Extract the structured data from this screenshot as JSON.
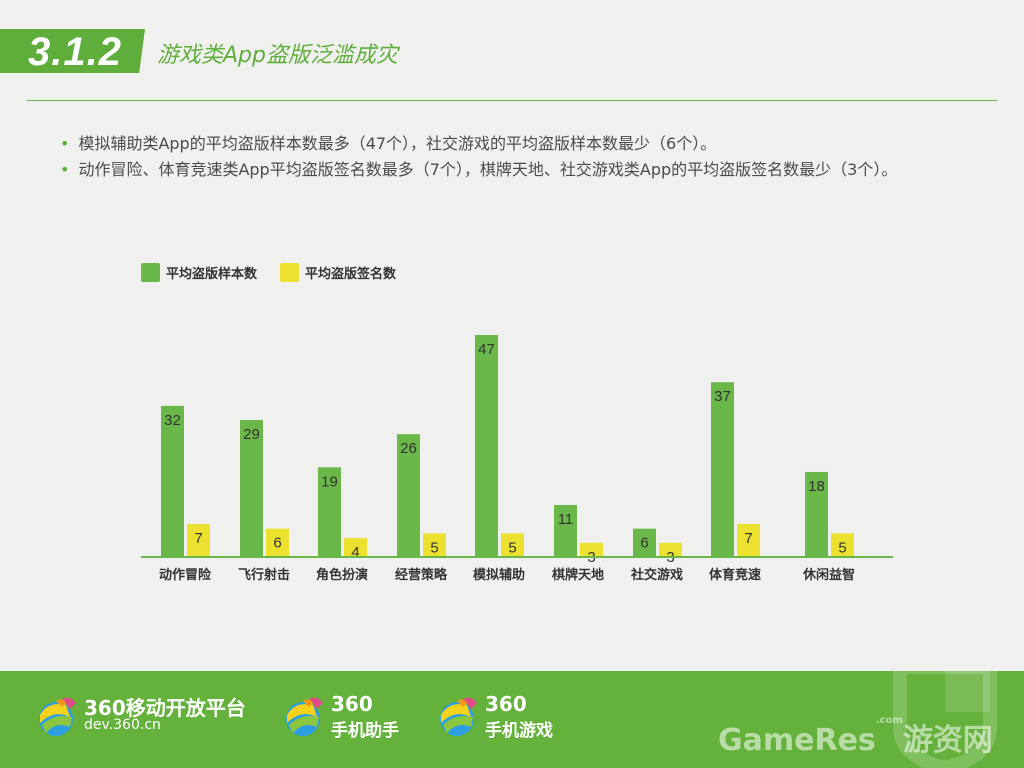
{
  "header": {
    "section_number": "3.1.2",
    "title": "游戏类App盗版泛滥成灾"
  },
  "bullets": [
    "模拟辅助类App的平均盗版样本数最多（47个），社交游戏的平均盗版样本数最少（6个）。",
    "动作冒险、体育竞速类App平均盗版签名数最多（7个），棋牌天地、社交游戏类App的平均盗版签名数最少（3个）。"
  ],
  "chart_data": {
    "type": "bar",
    "categories": [
      "动作冒险",
      "飞行射击",
      "角色扮演",
      "经营策略",
      "模拟辅助",
      "棋牌天地",
      "社交游戏",
      "体育竞速",
      "休闲益智"
    ],
    "series": [
      {
        "name": "平均盗版样本数",
        "color": "#6ab84a",
        "values": [
          32,
          29,
          19,
          26,
          47,
          11,
          6,
          37,
          18
        ]
      },
      {
        "name": "平均盗版签名数",
        "color": "#ece12f",
        "values": [
          7,
          6,
          4,
          5,
          5,
          3,
          3,
          7,
          5
        ]
      }
    ],
    "ylim": [
      0,
      47
    ],
    "legend_position": "top-left",
    "grid": false,
    "data_labels": true
  },
  "footer": {
    "brands": [
      {
        "big": "360移动开放平台",
        "small": "dev.360.cn"
      },
      {
        "big": "360",
        "small": "手机助手"
      },
      {
        "big": "360",
        "small": "手机游戏"
      }
    ],
    "watermark_main": "GameRes",
    "watermark_sub": ".com",
    "watermark_cn": "游资网"
  }
}
